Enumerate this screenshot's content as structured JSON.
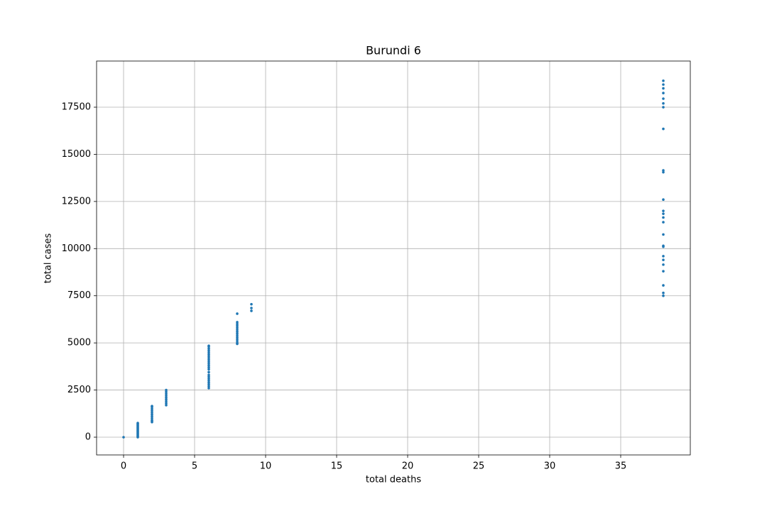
{
  "chart_data": {
    "type": "scatter",
    "title": "Burundi 6",
    "x_label": "total deaths",
    "y_label": "total cases",
    "xlim": [
      -1.9,
      39.9
    ],
    "ylim": [
      -941,
      19947
    ],
    "xticks": [
      0,
      5,
      10,
      15,
      20,
      25,
      30,
      35
    ],
    "yticks": [
      0,
      2500,
      5000,
      7500,
      10000,
      12500,
      15000,
      17500
    ],
    "grid": true,
    "series": [
      {
        "color": "#1f77b4",
        "x": [
          0,
          1,
          1,
          1,
          1,
          1,
          1,
          1,
          1,
          1,
          1,
          1,
          1,
          1,
          1,
          1,
          1,
          2,
          2,
          2,
          2,
          2,
          2,
          2,
          2,
          2,
          2,
          2,
          3,
          3,
          3,
          3,
          3,
          3,
          3,
          3,
          3,
          6,
          6,
          6,
          6,
          6,
          6,
          6,
          6,
          6,
          6,
          6,
          6,
          6,
          6,
          6,
          6,
          6,
          6,
          6,
          6,
          6,
          6,
          6,
          8,
          8,
          8,
          8,
          8,
          8,
          8,
          8,
          8,
          8,
          8,
          8,
          8,
          8,
          9,
          9,
          9,
          38,
          38,
          38,
          38,
          38,
          38,
          38,
          38,
          38,
          38,
          38,
          38,
          38,
          38,
          38,
          38,
          38,
          38,
          38,
          38,
          38,
          38,
          38,
          38,
          38
        ],
        "y": [
          0,
          0,
          50,
          100,
          150,
          200,
          250,
          300,
          350,
          400,
          450,
          500,
          550,
          600,
          650,
          700,
          750,
          800,
          850,
          900,
          1000,
          1100,
          1200,
          1300,
          1400,
          1500,
          1600,
          1650,
          1700,
          1800,
          1900,
          2000,
          2100,
          2200,
          2300,
          2400,
          2500,
          2600,
          2700,
          2800,
          2900,
          3000,
          3100,
          3200,
          3300,
          3450,
          3600,
          3700,
          3800,
          3900,
          4000,
          4100,
          4200,
          4300,
          4400,
          4500,
          4600,
          4700,
          4800,
          4850,
          4950,
          5000,
          5100,
          5200,
          5300,
          5400,
          5500,
          5600,
          5700,
          5800,
          5900,
          6000,
          6100,
          6550,
          6700,
          6850,
          7050,
          7500,
          7650,
          8050,
          8800,
          9150,
          9400,
          9600,
          10100,
          10150,
          10750,
          11400,
          11650,
          11850,
          12000,
          12600,
          14050,
          14150,
          16350,
          17500,
          17700,
          17950,
          18250,
          18500,
          18700,
          18900
        ]
      }
    ]
  }
}
